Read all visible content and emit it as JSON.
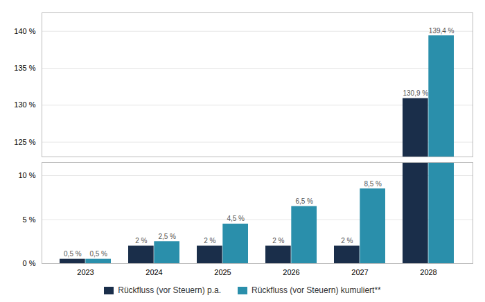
{
  "chart_data": [
    {
      "type": "bar",
      "categories": [
        "2023",
        "2024",
        "2025",
        "2026",
        "2027",
        "2028"
      ],
      "series": [
        {
          "name": "Rückfluss (vor Steuern) p.a.",
          "color": "#1a2e4a",
          "values": [
            null,
            null,
            null,
            null,
            null,
            130.9
          ],
          "value_labels": [
            null,
            null,
            null,
            null,
            null,
            "130,9 %"
          ]
        },
        {
          "name": "Rückfluss (vor Steuern) kumuliert**",
          "color": "#2a8fab",
          "values": [
            null,
            null,
            null,
            null,
            null,
            139.4
          ],
          "value_labels": [
            null,
            null,
            null,
            null,
            null,
            "139,4 %"
          ]
        }
      ],
      "ylim": [
        123.0,
        142.5
      ],
      "yticks": [
        {
          "value": 125,
          "label": "125 %"
        },
        {
          "value": 130,
          "label": "130 %"
        },
        {
          "value": 135,
          "label": "135 %"
        },
        {
          "value": 140,
          "label": "140 %"
        }
      ],
      "grid": true,
      "data_labels": true,
      "tick_labels": "y"
    },
    {
      "type": "bar",
      "categories": [
        "2023",
        "2024",
        "2025",
        "2026",
        "2027",
        "2028"
      ],
      "series": [
        {
          "name": "Rückfluss (vor Steuern) p.a.",
          "color": "#1a2e4a",
          "values": [
            0.5,
            2.0,
            2.0,
            2.0,
            2.0,
            11.5
          ],
          "value_labels": [
            "0,5 %",
            "2 %",
            "2 %",
            "2 %",
            "2 %",
            null
          ]
        },
        {
          "name": "Rückfluss (vor Steuern) kumuliert**",
          "color": "#2a8fab",
          "values": [
            0.5,
            2.5,
            4.5,
            6.5,
            8.5,
            11.5
          ],
          "value_labels": [
            "0,5 %",
            "2,5 %",
            "4,5 %",
            "6,5 %",
            "8,5 %",
            null
          ]
        }
      ],
      "ylim": [
        0,
        11.5
      ],
      "yticks": [
        {
          "value": 0,
          "label": "0 %"
        },
        {
          "value": 5,
          "label": "5 %"
        },
        {
          "value": 10,
          "label": "10 %"
        }
      ],
      "grid": true,
      "data_labels": true,
      "legend": "bottom"
    }
  ]
}
